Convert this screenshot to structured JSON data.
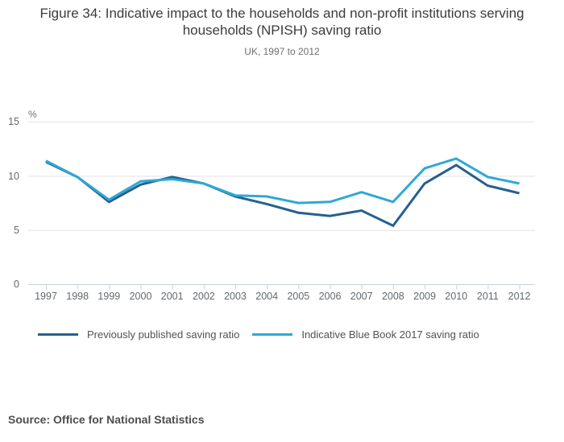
{
  "header": {
    "title": "Figure 34: Indicative impact to the households and non-profit institutions serving households (NPISH) saving ratio",
    "subtitle": "UK, 1997 to 2012"
  },
  "chart_data": {
    "type": "line",
    "title": "Figure 34: Indicative impact to the households and non-profit institutions serving households (NPISH) saving ratio",
    "subtitle": "UK, 1997 to 2012",
    "unit_label": "%",
    "categories": [
      "1997",
      "1998",
      "1999",
      "2000",
      "2001",
      "2002",
      "2003",
      "2004",
      "2005",
      "2006",
      "2007",
      "2008",
      "2009",
      "2010",
      "2011",
      "2012"
    ],
    "series": [
      {
        "name": "Previously published saving ratio",
        "color": "#25608f",
        "values": [
          11.3,
          9.9,
          7.6,
          9.2,
          9.9,
          9.3,
          8.1,
          7.4,
          6.6,
          6.3,
          6.8,
          5.4,
          9.3,
          11.0,
          9.1,
          8.4
        ]
      },
      {
        "name": "Indicative Blue Book 2017 saving ratio",
        "color": "#2fa8d6",
        "values": [
          11.4,
          9.9,
          7.8,
          9.5,
          9.7,
          9.3,
          8.2,
          8.1,
          7.5,
          7.6,
          8.5,
          7.6,
          10.7,
          11.6,
          9.9,
          9.3
        ]
      }
    ],
    "ylim": [
      0,
      15
    ],
    "yticks": [
      0,
      5,
      10,
      15
    ],
    "grid": "horizontal",
    "legend_position": "bottom",
    "colors": {
      "gridline": "#e3e3e3",
      "axis": "#c9d2d9",
      "axis_text": "#62696e"
    }
  },
  "footer": {
    "source": "Source: Office for National Statistics"
  }
}
